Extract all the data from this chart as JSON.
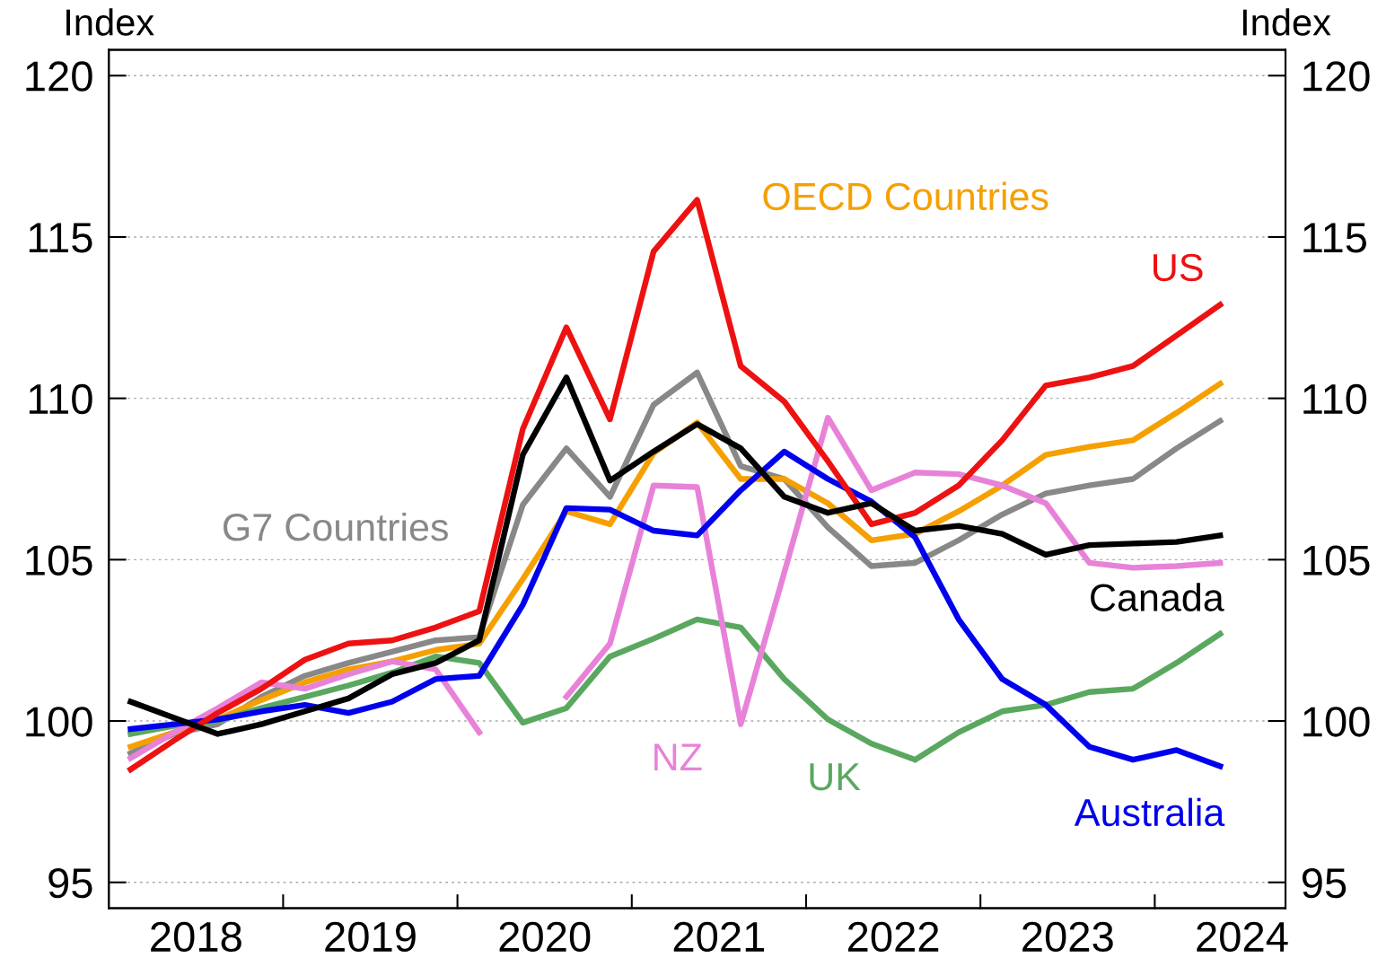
{
  "chart_data": {
    "type": "line",
    "ylabel": "Index",
    "y2label": "Index",
    "x": [
      2018.125,
      2018.375,
      2018.625,
      2018.875,
      2019.125,
      2019.375,
      2019.625,
      2019.875,
      2020.125,
      2020.375,
      2020.625,
      2020.875,
      2021.125,
      2021.375,
      2021.625,
      2021.875,
      2022.125,
      2022.375,
      2022.625,
      2022.875,
      2023.125,
      2023.375,
      2023.625,
      2023.875,
      2024.125,
      2024.375
    ],
    "xlim": [
      2018,
      2024.75
    ],
    "xticks": [
      {
        "value": 2019,
        "label": null
      },
      {
        "value": 2020,
        "label": null
      },
      {
        "value": 2021,
        "label": null
      },
      {
        "value": 2022,
        "label": null
      },
      {
        "value": 2023,
        "label": null
      },
      {
        "value": 2024,
        "label": null
      },
      {
        "value": 2018.5,
        "label": "2018"
      },
      {
        "value": 2019.5,
        "label": "2019"
      },
      {
        "value": 2020.5,
        "label": "2020"
      },
      {
        "value": 2021.5,
        "label": "2021"
      },
      {
        "value": 2022.5,
        "label": "2022"
      },
      {
        "value": 2023.5,
        "label": "2023"
      },
      {
        "value": 2024.5,
        "label": "2024"
      }
    ],
    "ylim": [
      94.2,
      120.8
    ],
    "yticks": [
      95,
      100,
      105,
      110,
      115,
      120
    ],
    "y2lim": [
      94.2,
      120.8
    ],
    "y2ticks": [
      95,
      100,
      105,
      110,
      115,
      120
    ],
    "grid": "y",
    "legend": false,
    "marker": "none",
    "line_style": "solid",
    "series": [
      {
        "name": "G7 Countries",
        "color": "#888888",
        "values": [
          99.0,
          99.6,
          99.9,
          100.75,
          101.4,
          101.8,
          102.15,
          102.5,
          102.6,
          106.7,
          108.45,
          106.95,
          109.8,
          110.8,
          107.9,
          107.5,
          106.0,
          104.8,
          104.9,
          105.6,
          106.4,
          107.05,
          107.3,
          107.5,
          108.45,
          109.3
        ]
      },
      {
        "name": "OECD Countries",
        "color": "#f5a000",
        "values": [
          99.2,
          99.65,
          100.05,
          100.65,
          101.2,
          101.6,
          101.85,
          102.2,
          102.4,
          104.4,
          106.5,
          106.1,
          108.3,
          109.25,
          107.5,
          107.5,
          106.75,
          105.6,
          105.8,
          106.5,
          107.3,
          108.25,
          108.5,
          108.7,
          109.55,
          110.45
        ]
      },
      {
        "name": "UK",
        "color": "#5aa860",
        "values": [
          99.6,
          99.85,
          100.0,
          100.4,
          100.75,
          101.1,
          101.5,
          102.0,
          101.8,
          99.95,
          100.4,
          102.0,
          102.55,
          103.15,
          102.9,
          101.3,
          100.05,
          99.3,
          98.8,
          99.65,
          100.3,
          100.5,
          100.9,
          101.0,
          101.8,
          102.7
        ]
      },
      {
        "name": "NZ",
        "color": "#e882d8",
        "values": [
          98.85,
          99.65,
          100.4,
          101.2,
          101.0,
          101.45,
          101.85,
          101.6,
          99.65,
          null,
          100.75,
          102.4,
          107.3,
          107.25,
          99.9,
          104.6,
          109.4,
          107.15,
          107.7,
          107.65,
          107.3,
          106.75,
          104.9,
          104.75,
          104.8,
          104.9
        ]
      },
      {
        "name": "Australia",
        "color": "#0000ee",
        "values": [
          99.75,
          99.9,
          100.05,
          100.3,
          100.5,
          100.25,
          100.6,
          101.3,
          101.4,
          103.6,
          106.6,
          106.55,
          105.9,
          105.75,
          107.15,
          108.35,
          107.5,
          106.8,
          105.7,
          103.15,
          101.3,
          100.5,
          99.2,
          98.8,
          99.1,
          98.6
        ]
      },
      {
        "name": "US",
        "color": "#ee1111",
        "values": [
          98.5,
          99.4,
          100.25,
          101.0,
          101.9,
          102.4,
          102.5,
          102.9,
          103.4,
          109.05,
          112.2,
          109.35,
          114.55,
          116.15,
          111.0,
          109.9,
          108.05,
          106.1,
          106.45,
          107.3,
          108.7,
          110.4,
          110.65,
          111.0,
          111.95,
          112.9
        ]
      },
      {
        "name": "Canada",
        "color": "#000000",
        "values": [
          100.6,
          100.1,
          99.6,
          99.9,
          100.3,
          100.7,
          101.45,
          101.8,
          102.5,
          108.25,
          110.65,
          107.45,
          108.35,
          109.2,
          108.45,
          106.95,
          106.45,
          106.75,
          105.9,
          106.05,
          105.8,
          105.15,
          105.45,
          105.5,
          105.55,
          105.75
        ]
      }
    ]
  }
}
